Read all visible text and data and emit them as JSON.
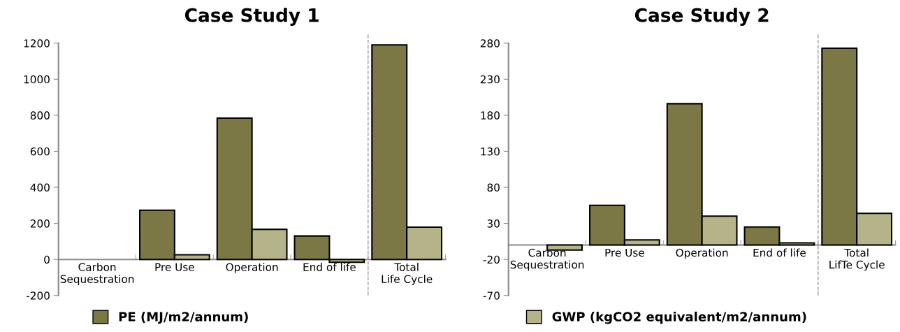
{
  "chart_data": [
    {
      "type": "bar",
      "title": "Case Study 1",
      "categories": [
        "Carbon\nSequestration",
        "Pre Use",
        "Operation",
        "End of life",
        "Total\nLife Cycle"
      ],
      "series": [
        {
          "name": "PE (MJ/m2/annum)",
          "color": "#7b7846",
          "values": [
            null,
            273,
            784,
            130,
            1190
          ]
        },
        {
          "name": "GWP (kgCO2 equivalent/m2/annum)",
          "color": "#b5b38a",
          "values": [
            null,
            26,
            167,
            -16,
            179
          ]
        }
      ],
      "ylim": [
        -200,
        1200
      ],
      "yticks": [
        -200,
        0,
        200,
        400,
        600,
        800,
        1000,
        1200
      ],
      "legend": "bottom"
    },
    {
      "type": "bar",
      "title": "Case Study 2",
      "categories": [
        "Carbon\nSequestration",
        "Pre Use",
        "Operation",
        "End of life",
        "Total\nLifTe Cycle"
      ],
      "series": [
        {
          "name": "PE (MJ/m2/annum)",
          "color": "#7b7846",
          "values": [
            null,
            55,
            196,
            25,
            273
          ]
        },
        {
          "name": "GWP (kgCO2 equivalent/m2/annum)",
          "color": "#b5b38a",
          "values": [
            -7,
            7,
            40,
            3,
            44
          ]
        }
      ],
      "ylim": [
        -70,
        280
      ],
      "yticks": [
        -70,
        -20,
        30,
        80,
        130,
        180,
        230,
        280
      ],
      "legend": "bottom"
    }
  ]
}
